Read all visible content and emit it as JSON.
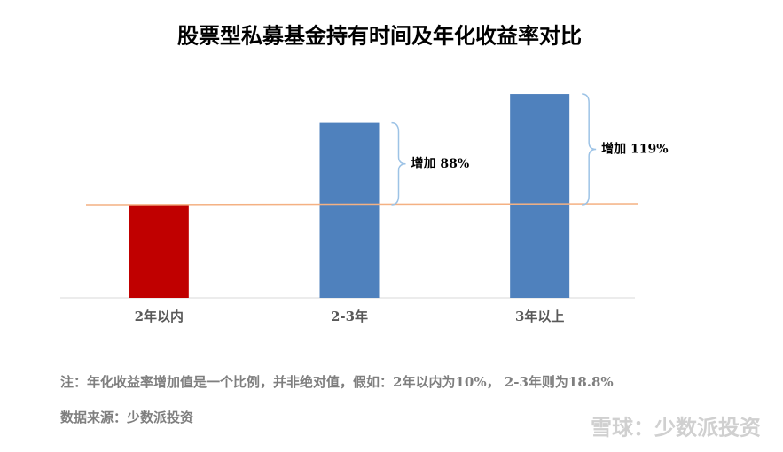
{
  "chart_data": {
    "type": "bar",
    "title": "股票型私募基金持有时间及年化收益率对比",
    "categories": [
      "2年以内",
      "2-3年",
      "3年以上"
    ],
    "values": [
      10,
      18.8,
      21.9
    ],
    "colors": [
      "#c00000",
      "#4f81bd",
      "#4f81bd"
    ],
    "reference_color": "#f4b183",
    "ylim": [
      0,
      24
    ],
    "annotations": [
      "增加 88%",
      "增加 119%"
    ],
    "note": "注：年化收益率增加值是一个比例，并非绝对值，假如：2年以内为10%， 2-3年则为18.8%",
    "source": "数据来源：少数派投资",
    "watermark": "雪球：少数派投资"
  }
}
